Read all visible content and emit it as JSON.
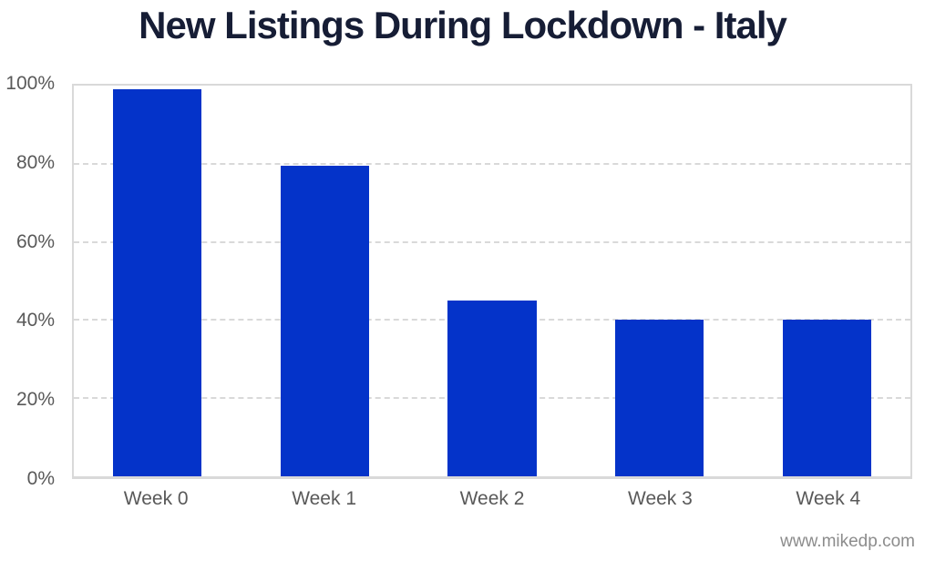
{
  "title": "New Listings During Lockdown - Italy",
  "watermark": "www.mikedp.com",
  "colors": {
    "bar": "#0433C9",
    "title": "#161D35",
    "axis_labels": "#595959",
    "gridlines": "#D9D9D9",
    "watermark": "#8C8C8C",
    "background": "#FFFFFF"
  },
  "chart_data": {
    "type": "bar",
    "title": "New Listings During Lockdown - Italy",
    "categories": [
      "Week 0",
      "Week 1",
      "Week 2",
      "Week 3",
      "Week 4"
    ],
    "values": [
      99,
      79.5,
      45,
      40,
      40
    ],
    "xlabel": "",
    "ylabel": "",
    "ylim": [
      0,
      100
    ],
    "yticks": [
      0,
      20,
      40,
      60,
      80,
      100
    ],
    "ytick_suffix": "%",
    "grid": "horizontal-dashed",
    "legend": "none",
    "plot_border": "all-sides-solid-light-gray"
  }
}
